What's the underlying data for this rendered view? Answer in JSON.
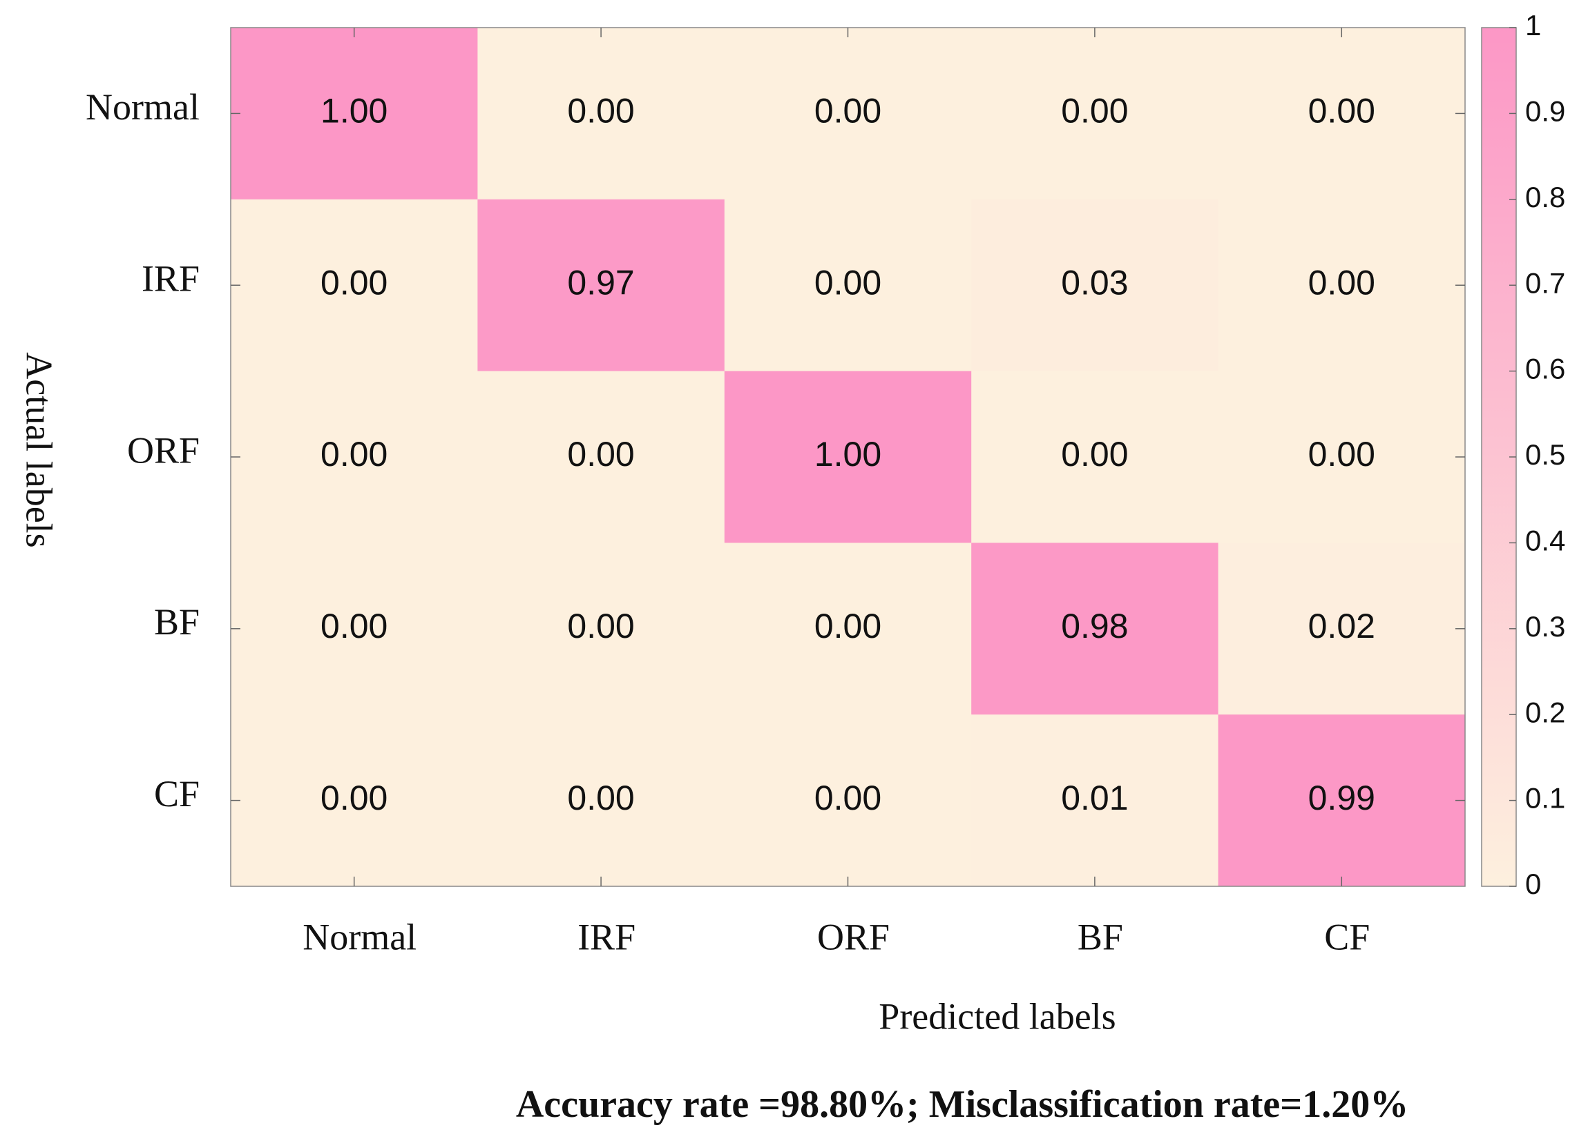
{
  "chart_data": {
    "type": "heatmap",
    "x_categories": [
      "Normal",
      "IRF",
      "ORF",
      "BF",
      "CF"
    ],
    "y_categories": [
      "Normal",
      "IRF",
      "ORF",
      "BF",
      "CF"
    ],
    "xlabel": "Predicted labels",
    "ylabel": "Actual labels",
    "values": [
      [
        1.0,
        0.0,
        0.0,
        0.0,
        0.0
      ],
      [
        0.0,
        0.97,
        0.0,
        0.03,
        0.0
      ],
      [
        0.0,
        0.0,
        1.0,
        0.0,
        0.0
      ],
      [
        0.0,
        0.0,
        0.0,
        0.98,
        0.02
      ],
      [
        0.0,
        0.0,
        0.0,
        0.01,
        0.99
      ]
    ],
    "value_labels": [
      [
        "1.00",
        "0.00",
        "0.00",
        "0.00",
        "0.00"
      ],
      [
        "0.00",
        "0.97",
        "0.00",
        "0.03",
        "0.00"
      ],
      [
        "0.00",
        "0.00",
        "1.00",
        "0.00",
        "0.00"
      ],
      [
        "0.00",
        "0.00",
        "0.00",
        "0.98",
        "0.02"
      ],
      [
        "0.00",
        "0.00",
        "0.00",
        "0.01",
        "0.99"
      ]
    ],
    "colormap": [
      "#fdf0de",
      "#fc97c6"
    ],
    "zlim": [
      0,
      1
    ],
    "zticks": [
      0,
      0.1,
      0.2,
      0.3,
      0.4,
      0.5,
      0.6,
      0.7,
      0.8,
      0.9,
      1
    ],
    "note": "Accuracy rate =98.80%; Misclassification rate=1.20%"
  }
}
